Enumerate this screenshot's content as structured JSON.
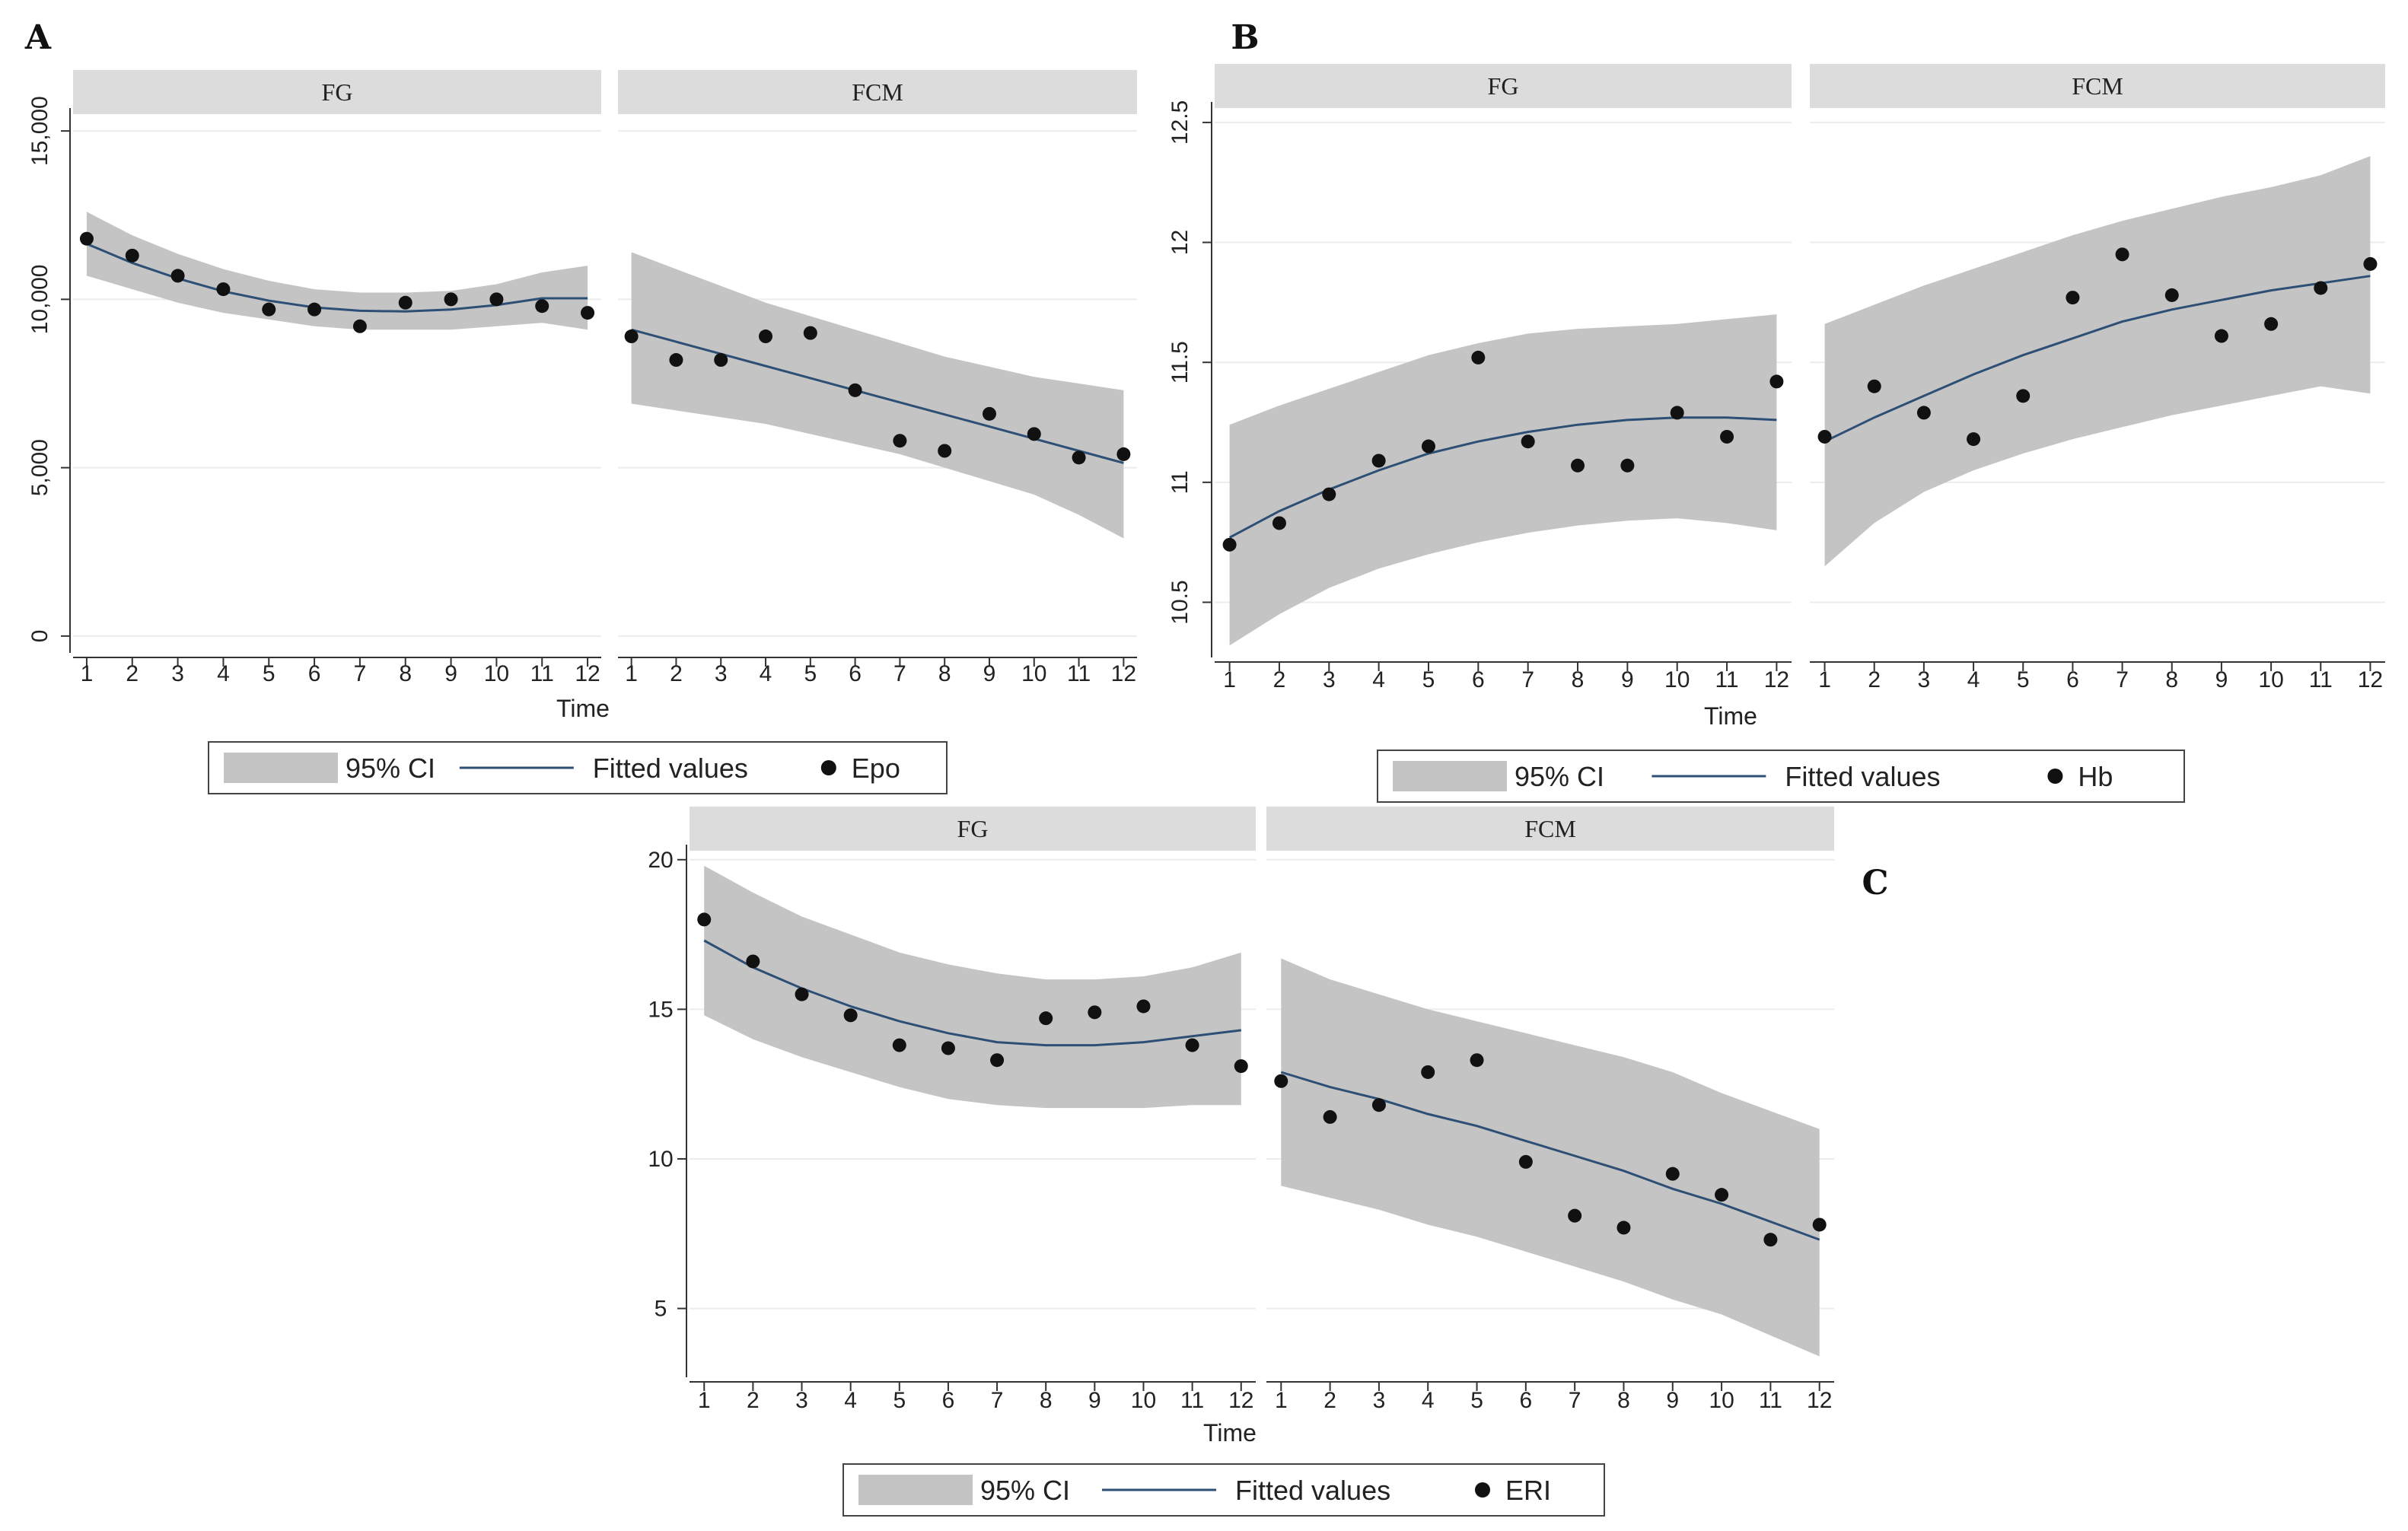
{
  "chart_data": [
    {
      "id": "A",
      "panel_label": "A",
      "type": "scatter",
      "x_title": "Time",
      "x_ticks": [
        1,
        2,
        3,
        4,
        5,
        6,
        7,
        8,
        9,
        10,
        11,
        12
      ],
      "y_ticks": [
        0,
        5000,
        10000,
        15000
      ],
      "y_tick_labels": [
        "0",
        "5,000",
        "10,000",
        "15,000"
      ],
      "ylim": [
        -500,
        15500
      ],
      "xlim": [
        0.7,
        12.3
      ],
      "facets": [
        {
          "strip": "FG",
          "points": [
            11800,
            11300,
            10700,
            10300,
            9700,
            9700,
            9200,
            9900,
            10000,
            10000,
            9800,
            9600
          ],
          "fitted": [
            11650,
            11080,
            10620,
            10240,
            9960,
            9760,
            9660,
            9640,
            9700,
            9830,
            10030,
            10030
          ],
          "ci_lower": [
            10700,
            10300,
            9900,
            9600,
            9400,
            9200,
            9100,
            9100,
            9100,
            9200,
            9300,
            9100
          ],
          "ci_upper": [
            12600,
            11900,
            11350,
            10900,
            10550,
            10300,
            10200,
            10200,
            10250,
            10450,
            10800,
            11000
          ]
        },
        {
          "strip": "FCM",
          "points": [
            8900,
            8200,
            8200,
            8900,
            9000,
            7300,
            5800,
            5500,
            6600,
            6000,
            5300,
            5400
          ],
          "fitted": [
            9100,
            8740,
            8380,
            8020,
            7660,
            7300,
            6940,
            6580,
            6220,
            5860,
            5500,
            5140
          ],
          "ci_lower": [
            6900,
            6700,
            6500,
            6300,
            6000,
            5700,
            5400,
            5000,
            4600,
            4200,
            3600,
            2900
          ],
          "ci_upper": [
            11400,
            10900,
            10400,
            9900,
            9500,
            9100,
            8700,
            8300,
            8000,
            7700,
            7500,
            7300
          ]
        }
      ],
      "legend": {
        "ci_label": "95% CI",
        "fitted_label": "Fitted values",
        "points_label": "Epo"
      }
    },
    {
      "id": "B",
      "panel_label": "B",
      "type": "scatter",
      "x_title": "Time",
      "x_ticks": [
        1,
        2,
        3,
        4,
        5,
        6,
        7,
        8,
        9,
        10,
        11,
        12
      ],
      "y_ticks": [
        10.5,
        11,
        11.5,
        12,
        12.5
      ],
      "y_tick_labels": [
        "10.5",
        "11",
        "11.5",
        "12",
        "12.5"
      ],
      "ylim": [
        10.27,
        12.56
      ],
      "xlim": [
        0.7,
        12.3
      ],
      "facets": [
        {
          "strip": "FG",
          "points": [
            10.74,
            10.83,
            10.95,
            11.09,
            11.15,
            11.52,
            11.17,
            11.07,
            11.07,
            11.29,
            11.19,
            11.42
          ],
          "fitted": [
            10.77,
            10.88,
            10.97,
            11.05,
            11.12,
            11.17,
            11.21,
            11.24,
            11.26,
            11.27,
            11.27,
            11.26
          ],
          "ci_lower": [
            10.32,
            10.45,
            10.56,
            10.64,
            10.7,
            10.75,
            10.79,
            10.82,
            10.84,
            10.85,
            10.83,
            10.8
          ],
          "ci_upper": [
            11.24,
            11.32,
            11.39,
            11.46,
            11.53,
            11.58,
            11.62,
            11.64,
            11.65,
            11.66,
            11.68,
            11.7
          ]
        },
        {
          "strip": "FCM",
          "points": [
            11.19,
            11.4,
            11.29,
            11.18,
            11.36,
            11.77,
            11.95,
            11.78,
            11.61,
            11.66,
            11.81,
            11.91
          ],
          "fitted": [
            11.17,
            11.27,
            11.36,
            11.45,
            11.53,
            11.6,
            11.67,
            11.72,
            11.76,
            11.8,
            11.83,
            11.86
          ],
          "ci_lower": [
            10.65,
            10.83,
            10.96,
            11.05,
            11.12,
            11.18,
            11.23,
            11.28,
            11.32,
            11.36,
            11.4,
            11.37
          ],
          "ci_upper": [
            11.66,
            11.74,
            11.82,
            11.89,
            11.96,
            12.03,
            12.09,
            12.14,
            12.19,
            12.23,
            12.28,
            12.36
          ]
        }
      ],
      "legend": {
        "ci_label": "95% CI",
        "fitted_label": "Fitted values",
        "points_label": "Hb"
      }
    },
    {
      "id": "C",
      "panel_label": "C",
      "type": "scatter",
      "x_title": "Time",
      "x_ticks": [
        1,
        2,
        3,
        4,
        5,
        6,
        7,
        8,
        9,
        10,
        11,
        12
      ],
      "y_ticks": [
        5,
        10,
        15,
        20
      ],
      "y_tick_labels": [
        "5",
        "10",
        "15",
        "20"
      ],
      "ylim": [
        2.7,
        20.3
      ],
      "xlim": [
        0.7,
        12.3
      ],
      "facets": [
        {
          "strip": "FG",
          "points": [
            18.0,
            16.6,
            15.5,
            14.8,
            13.8,
            13.7,
            13.3,
            14.7,
            14.9,
            15.1,
            13.8,
            13.1
          ],
          "fitted": [
            17.3,
            16.4,
            15.7,
            15.1,
            14.6,
            14.2,
            13.9,
            13.8,
            13.8,
            13.9,
            14.1,
            14.3
          ],
          "ci_lower": [
            14.8,
            14.0,
            13.4,
            12.9,
            12.4,
            12.0,
            11.8,
            11.7,
            11.7,
            11.7,
            11.8,
            11.8
          ],
          "ci_upper": [
            19.8,
            18.9,
            18.1,
            17.5,
            16.9,
            16.5,
            16.2,
            16.0,
            16.0,
            16.1,
            16.4,
            16.9
          ]
        },
        {
          "strip": "FCM",
          "points": [
            12.6,
            11.4,
            11.8,
            12.9,
            13.3,
            9.9,
            8.1,
            7.7,
            9.5,
            8.8,
            7.3,
            7.8
          ],
          "fitted": [
            12.9,
            12.4,
            12.0,
            11.5,
            11.1,
            10.6,
            10.1,
            9.6,
            9.0,
            8.5,
            7.9,
            7.3
          ],
          "ci_lower": [
            9.1,
            8.7,
            8.3,
            7.8,
            7.4,
            6.9,
            6.4,
            5.9,
            5.3,
            4.8,
            4.1,
            3.4
          ],
          "ci_upper": [
            16.7,
            16.0,
            15.5,
            15.0,
            14.6,
            14.2,
            13.8,
            13.4,
            12.9,
            12.2,
            11.6,
            11.0
          ]
        }
      ],
      "legend": {
        "ci_label": "95% CI",
        "fitted_label": "Fitted values",
        "points_label": "ERI"
      }
    }
  ],
  "colors": {
    "ci_fill": "#c4c4c4",
    "fitted_line": "#2e4f75",
    "point": "#111111",
    "strip_bg": "#dcdcdc",
    "grid": "#ececec"
  }
}
